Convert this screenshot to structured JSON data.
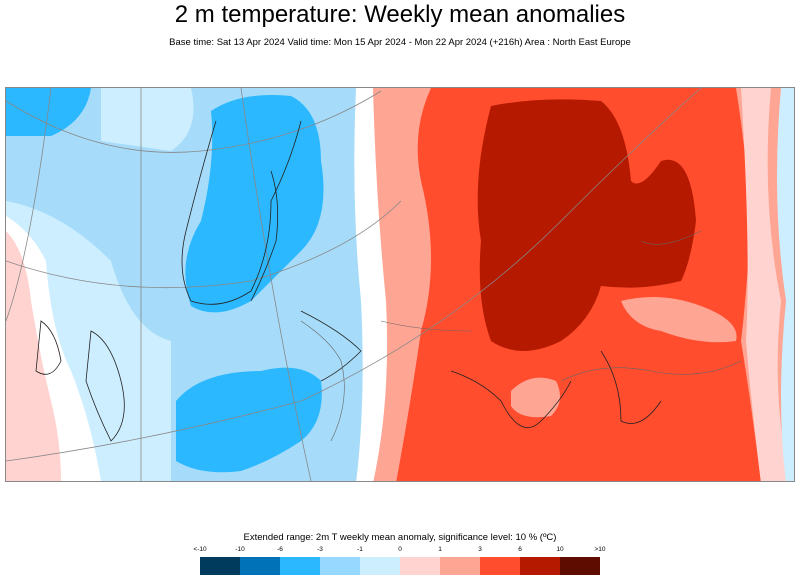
{
  "title": "2 m temperature: Weekly mean anomalies",
  "subtitle": "Base time: Sat 13 Apr 2024 Valid time: Mon 15 Apr 2024 - Mon 22 Apr 2024 (+216h) Area : North East Europe",
  "legend": {
    "title": "Extended range: 2m T weekly mean anomaly, significance level: 10 % (ºC)",
    "ticks": [
      "<-10",
      "-10",
      "-6",
      "-3",
      "-1",
      "0",
      "1",
      "3",
      "6",
      "10",
      ">10"
    ],
    "colors": [
      "#003a5c",
      "#0072b8",
      "#2bb8ff",
      "#96d8ff",
      "#cdeeff",
      "#ffd3cf",
      "#ffa594",
      "#ff4d2e",
      "#b51a00",
      "#5e0c00"
    ]
  }
}
